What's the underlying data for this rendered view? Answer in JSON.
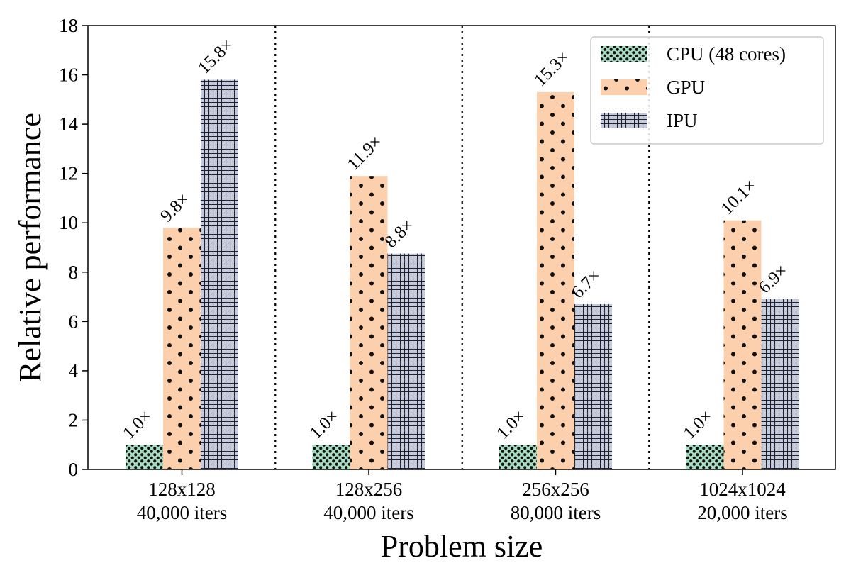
{
  "chart_data": {
    "type": "bar",
    "categories": [
      [
        "128x128",
        "40,000 iters"
      ],
      [
        "128x256",
        "40,000 iters"
      ],
      [
        "256x256",
        "80,000 iters"
      ],
      [
        "1024x1024",
        "20,000 iters"
      ]
    ],
    "series": [
      {
        "name": "CPU (48 cores)",
        "values": [
          1.0,
          1.0,
          1.0,
          1.0
        ],
        "labels": [
          "1.0×",
          "1.0×",
          "1.0×",
          "1.0×"
        ],
        "color": "#a8dcc2",
        "pattern": "dense-dots"
      },
      {
        "name": "GPU",
        "values": [
          9.8,
          11.9,
          15.3,
          10.1
        ],
        "labels": [
          "9.8×",
          "11.9×",
          "15.3×",
          "10.1×"
        ],
        "color": "#fdd0ad",
        "pattern": "sparse-dots"
      },
      {
        "name": "IPU",
        "values": [
          15.8,
          8.75,
          6.7,
          6.9
        ],
        "labels": [
          "15.8×",
          "8.8×",
          "6.7×",
          "6.9×"
        ],
        "color": "#c5cbe0",
        "pattern": "grid"
      }
    ],
    "title": "",
    "xlabel": "Problem size",
    "ylabel": "Relative performance",
    "ylim": [
      0,
      18
    ],
    "yticks": [
      0,
      2,
      4,
      6,
      8,
      10,
      12,
      14,
      16,
      18
    ],
    "grid": false,
    "group_separators": "dotted",
    "legend_position": "top-right"
  }
}
